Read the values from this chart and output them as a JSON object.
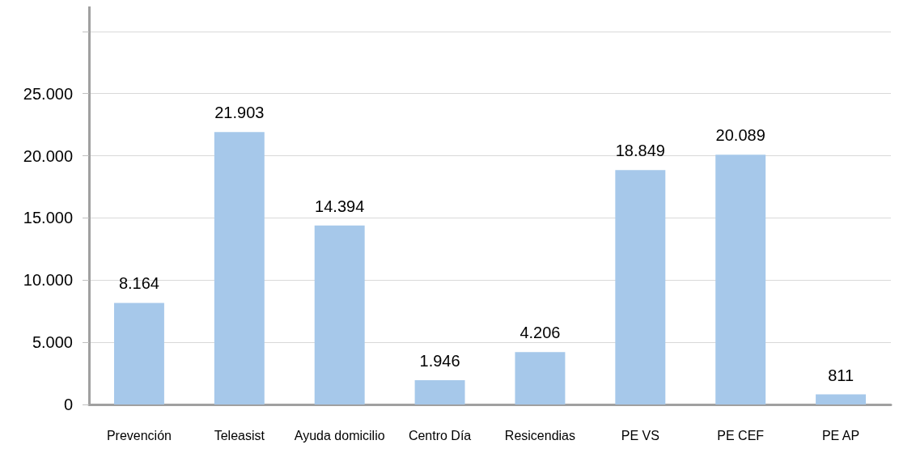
{
  "chart_data": {
    "type": "bar",
    "categories": [
      "Prevención",
      "Teleasist",
      "Ayuda domicilio",
      "Centro Día",
      "Resicendias",
      "PE VS",
      "PE CEF",
      "PE AP"
    ],
    "values": [
      8164,
      21903,
      14394,
      1946,
      4206,
      18849,
      20089,
      811
    ],
    "value_labels": [
      "8.164",
      "21.903",
      "14.394",
      "1.946",
      "4.206",
      "18.849",
      "20.089",
      "811"
    ],
    "color": "#a6c8ea",
    "ylim": [
      0,
      32000
    ],
    "yticks": [
      {
        "value": 0,
        "label": "0"
      },
      {
        "value": 5000,
        "label": "5.000"
      },
      {
        "value": 10000,
        "label": "10.000"
      },
      {
        "value": 15000,
        "label": "15.000"
      },
      {
        "value": 20000,
        "label": "20.000"
      },
      {
        "value": 25000,
        "label": "25.000"
      },
      {
        "value": 30000,
        "label": null
      }
    ],
    "grid": "y"
  }
}
